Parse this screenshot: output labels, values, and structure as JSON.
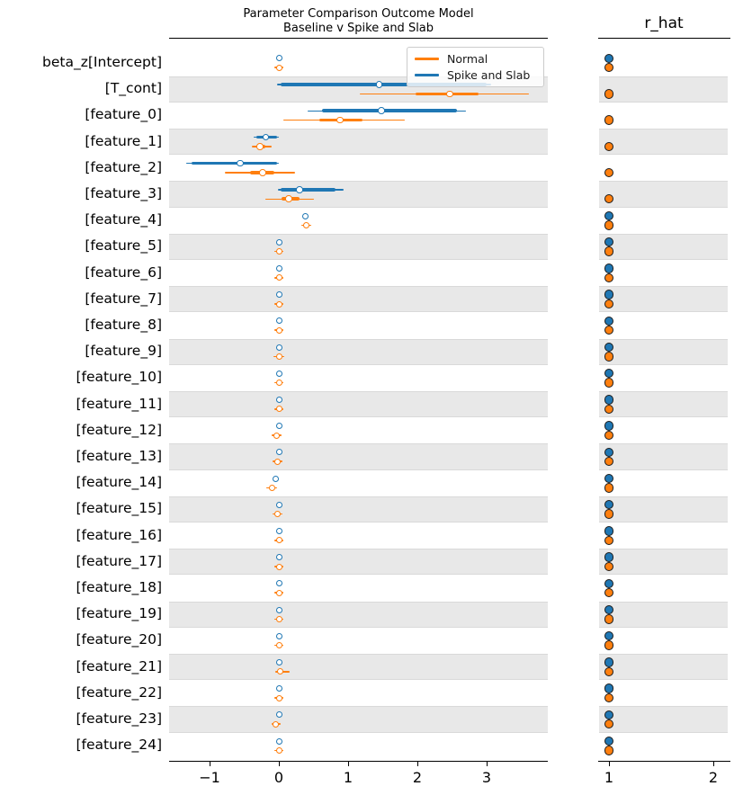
{
  "title": {
    "line1": "Parameter Comparison Outcome Model",
    "line2": "Baseline v Spike and Slab"
  },
  "rhat_title": "r_hat",
  "legend": [
    {
      "label": "Normal",
      "color": "#ff7f0e"
    },
    {
      "label": "Spike and Slab",
      "color": "#1f77b4"
    }
  ],
  "colors": {
    "normal": "#ff7f0e",
    "spike": "#1f77b4",
    "band": "#e8e8e8",
    "spine": "#000000"
  },
  "axes": {
    "left": {
      "xlim": [
        -1.58,
        3.88
      ],
      "ticks": [
        {
          "v": -1,
          "label": "−1"
        },
        {
          "v": 0,
          "label": "0"
        },
        {
          "v": 1,
          "label": "1"
        },
        {
          "v": 2,
          "label": "2"
        },
        {
          "v": 3,
          "label": "3"
        }
      ]
    },
    "right": {
      "xlim": [
        0.9,
        2.15
      ],
      "ticks": [
        {
          "v": 1,
          "label": "1"
        },
        {
          "v": 2,
          "label": "2"
        }
      ]
    }
  },
  "chart_data": {
    "type": "forest",
    "note": "Forest plot of posterior credible intervals for two models (thin = wide CI, thick = interquartile, circle = median); right panel shows r_hat per parameter per model. Rows 1-5 have no Spike-and-Slab r_hat dot visible.",
    "rows": [
      {
        "label": "beta_z[Intercept]",
        "spike": {
          "kind": "dot",
          "m": 0.0
        },
        "normal": {
          "kind": "dot",
          "m": 0.0,
          "lo": -0.06,
          "hi": 0.07
        },
        "rhat": {
          "spike": 1.0,
          "normal": 1.0
        }
      },
      {
        "label": "[T_cont]",
        "spike": {
          "kind": "interval",
          "lo": -0.03,
          "q1": 0.02,
          "q3": 3.0,
          "hi": 3.06,
          "m": 1.45
        },
        "normal": {
          "kind": "interval",
          "lo": 1.17,
          "q1": 1.97,
          "q3": 2.88,
          "hi": 3.61,
          "m": 2.47
        },
        "rhat": {
          "spike": null,
          "normal": 1.0
        }
      },
      {
        "label": "[feature_0]",
        "spike": {
          "kind": "interval",
          "lo": 0.42,
          "q1": 0.62,
          "q3": 2.57,
          "hi": 2.7,
          "m": 1.48
        },
        "normal": {
          "kind": "interval",
          "lo": 0.06,
          "q1": 0.58,
          "q3": 1.21,
          "hi": 1.82,
          "m": 0.88
        },
        "rhat": {
          "spike": null,
          "normal": 1.0
        }
      },
      {
        "label": "[feature_1]",
        "spike": {
          "kind": "interval",
          "lo": -0.36,
          "q1": -0.32,
          "q3": -0.03,
          "hi": 0.0,
          "m": -0.19
        },
        "normal": {
          "kind": "interval",
          "lo": -0.39,
          "q1": -0.33,
          "q3": -0.2,
          "hi": -0.1,
          "m": -0.27
        },
        "rhat": {
          "spike": null,
          "normal": 1.0
        }
      },
      {
        "label": "[feature_2]",
        "spike": {
          "kind": "interval",
          "lo": -1.34,
          "q1": -1.26,
          "q3": -0.03,
          "hi": 0.0,
          "m": -0.56
        },
        "normal": {
          "kind": "interval",
          "lo": -0.78,
          "q1": -0.42,
          "q3": -0.06,
          "hi": 0.23,
          "m": -0.23
        },
        "rhat": {
          "spike": null,
          "normal": 1.0
        }
      },
      {
        "label": "[feature_3]",
        "spike": {
          "kind": "interval",
          "lo": -0.01,
          "q1": 0.03,
          "q3": 0.82,
          "hi": 0.94,
          "m": 0.3
        },
        "normal": {
          "kind": "interval",
          "lo": -0.19,
          "q1": 0.04,
          "q3": 0.3,
          "hi": 0.51,
          "m": 0.14
        },
        "rhat": {
          "spike": null,
          "normal": 1.0
        }
      },
      {
        "label": "[feature_4]",
        "spike": {
          "kind": "dot",
          "m": 0.38
        },
        "normal": {
          "kind": "dot",
          "m": 0.4,
          "lo": 0.33,
          "hi": 0.47
        },
        "rhat": {
          "spike": 1.0,
          "normal": 1.0
        }
      },
      {
        "label": "[feature_5]",
        "spike": {
          "kind": "dot",
          "m": 0.0
        },
        "normal": {
          "kind": "dot",
          "m": 0.0,
          "lo": -0.06,
          "hi": 0.06
        },
        "rhat": {
          "spike": 1.0,
          "normal": 1.0
        }
      },
      {
        "label": "[feature_6]",
        "spike": {
          "kind": "dot",
          "m": 0.0
        },
        "normal": {
          "kind": "dot",
          "m": 0.0,
          "lo": -0.06,
          "hi": 0.06
        },
        "rhat": {
          "spike": 1.0,
          "normal": 1.0
        }
      },
      {
        "label": "[feature_7]",
        "spike": {
          "kind": "dot",
          "m": 0.0
        },
        "normal": {
          "kind": "dot",
          "m": 0.0,
          "lo": -0.06,
          "hi": 0.06
        },
        "rhat": {
          "spike": 1.0,
          "normal": 1.0
        }
      },
      {
        "label": "[feature_8]",
        "spike": {
          "kind": "dot",
          "m": 0.0
        },
        "normal": {
          "kind": "dot",
          "m": 0.0,
          "lo": -0.06,
          "hi": 0.06
        },
        "rhat": {
          "spike": 1.0,
          "normal": 1.0
        }
      },
      {
        "label": "[feature_9]",
        "spike": {
          "kind": "dot",
          "m": 0.0
        },
        "normal": {
          "kind": "dot",
          "m": 0.0,
          "lo": -0.08,
          "hi": 0.08
        },
        "rhat": {
          "spike": 1.0,
          "normal": 1.0
        }
      },
      {
        "label": "[feature_10]",
        "spike": {
          "kind": "dot",
          "m": 0.0
        },
        "normal": {
          "kind": "dot",
          "m": 0.0,
          "lo": -0.06,
          "hi": 0.06
        },
        "rhat": {
          "spike": 1.0,
          "normal": 1.0
        }
      },
      {
        "label": "[feature_11]",
        "spike": {
          "kind": "dot",
          "m": 0.0
        },
        "normal": {
          "kind": "dot",
          "m": 0.0,
          "lo": -0.06,
          "hi": 0.06
        },
        "rhat": {
          "spike": 1.0,
          "normal": 1.0
        }
      },
      {
        "label": "[feature_12]",
        "spike": {
          "kind": "dot",
          "m": 0.0
        },
        "normal": {
          "kind": "dot",
          "m": -0.03,
          "lo": -0.1,
          "hi": 0.04
        },
        "rhat": {
          "spike": 1.0,
          "normal": 1.0
        }
      },
      {
        "label": "[feature_13]",
        "spike": {
          "kind": "dot",
          "m": 0.0
        },
        "normal": {
          "kind": "dot",
          "m": -0.02,
          "lo": -0.09,
          "hi": 0.05
        },
        "rhat": {
          "spike": 1.0,
          "normal": 1.0
        }
      },
      {
        "label": "[feature_14]",
        "spike": {
          "kind": "dot",
          "m": -0.04
        },
        "normal": {
          "kind": "dot",
          "m": -0.1,
          "lo": -0.18,
          "hi": -0.03
        },
        "rhat": {
          "spike": 1.0,
          "normal": 1.0
        }
      },
      {
        "label": "[feature_15]",
        "spike": {
          "kind": "dot",
          "m": 0.0
        },
        "normal": {
          "kind": "dot",
          "m": -0.02,
          "lo": -0.09,
          "hi": 0.05
        },
        "rhat": {
          "spike": 1.0,
          "normal": 1.0
        }
      },
      {
        "label": "[feature_16]",
        "spike": {
          "kind": "dot",
          "m": 0.0
        },
        "normal": {
          "kind": "dot",
          "m": 0.0,
          "lo": -0.06,
          "hi": 0.06
        },
        "rhat": {
          "spike": 1.0,
          "normal": 1.0
        }
      },
      {
        "label": "[feature_17]",
        "spike": {
          "kind": "dot",
          "m": 0.0
        },
        "normal": {
          "kind": "dot",
          "m": 0.0,
          "lo": -0.07,
          "hi": 0.07
        },
        "rhat": {
          "spike": 1.0,
          "normal": 1.0
        }
      },
      {
        "label": "[feature_18]",
        "spike": {
          "kind": "dot",
          "m": 0.0
        },
        "normal": {
          "kind": "dot",
          "m": 0.0,
          "lo": -0.06,
          "hi": 0.06
        },
        "rhat": {
          "spike": 1.0,
          "normal": 1.0
        }
      },
      {
        "label": "[feature_19]",
        "spike": {
          "kind": "dot",
          "m": 0.0
        },
        "normal": {
          "kind": "dot",
          "m": 0.0,
          "lo": -0.07,
          "hi": 0.07
        },
        "rhat": {
          "spike": 1.0,
          "normal": 1.0
        }
      },
      {
        "label": "[feature_20]",
        "spike": {
          "kind": "dot",
          "m": 0.0
        },
        "normal": {
          "kind": "dot",
          "m": 0.0,
          "lo": -0.06,
          "hi": 0.06
        },
        "rhat": {
          "spike": 1.0,
          "normal": 1.0
        }
      },
      {
        "label": "[feature_21]",
        "spike": {
          "kind": "dot",
          "m": 0.0
        },
        "normal": {
          "kind": "dot",
          "m": 0.02,
          "lo": -0.05,
          "hi": 0.16
        },
        "rhat": {
          "spike": 1.0,
          "normal": 1.0
        }
      },
      {
        "label": "[feature_22]",
        "spike": {
          "kind": "dot",
          "m": 0.0
        },
        "normal": {
          "kind": "dot",
          "m": 0.0,
          "lo": -0.06,
          "hi": 0.06
        },
        "rhat": {
          "spike": 1.0,
          "normal": 1.0
        }
      },
      {
        "label": "[feature_23]",
        "spike": {
          "kind": "dot",
          "m": 0.0
        },
        "normal": {
          "kind": "dot",
          "m": -0.04,
          "lo": -0.11,
          "hi": 0.03
        },
        "rhat": {
          "spike": 1.0,
          "normal": 1.0
        }
      },
      {
        "label": "[feature_24]",
        "spike": {
          "kind": "dot",
          "m": 0.0
        },
        "normal": {
          "kind": "dot",
          "m": 0.0,
          "lo": -0.06,
          "hi": 0.06
        },
        "rhat": {
          "spike": 1.0,
          "normal": 1.0
        }
      }
    ]
  }
}
